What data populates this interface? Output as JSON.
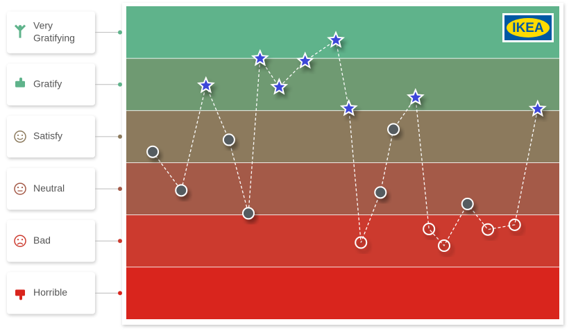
{
  "chart_data": {
    "type": "line",
    "logo": "IKEA",
    "ylim": [
      0,
      6
    ],
    "yticks": [
      {
        "value": 0.5,
        "label": "Horrible"
      },
      {
        "value": 1.5,
        "label": "Bad"
      },
      {
        "value": 2.5,
        "label": "Neutral"
      },
      {
        "value": 3.5,
        "label": "Satisfy"
      },
      {
        "value": 4.5,
        "label": "Gratify"
      },
      {
        "value": 5.5,
        "label": "Very Gratifying"
      }
    ],
    "band_colors": [
      "#d9251d",
      "#cc3a2e",
      "#a45a48",
      "#8c7a5d",
      "#6f9a72",
      "#5fb38b"
    ],
    "connector_colors": [
      "#d9251d",
      "#cc3a2e",
      "#a45a48",
      "#8c7a5d",
      "#5fb38b",
      "#5fb38b"
    ],
    "xlim": [
      0,
      100
    ],
    "x": [
      6.1,
      12.7,
      18.4,
      23.7,
      28.2,
      30.9,
      35.3,
      41.3,
      48.4,
      51.4,
      54.2,
      58.7,
      61.7,
      66.8,
      69.9,
      73.4,
      78.8,
      83.5,
      89.7,
      95.0
    ],
    "values": [
      3.21,
      2.47,
      4.48,
      3.44,
      2.03,
      5.0,
      4.45,
      4.95,
      5.35,
      4.04,
      1.47,
      2.43,
      3.64,
      4.25,
      1.73,
      1.41,
      2.21,
      1.72,
      1.81,
      4.03
    ]
  }
}
